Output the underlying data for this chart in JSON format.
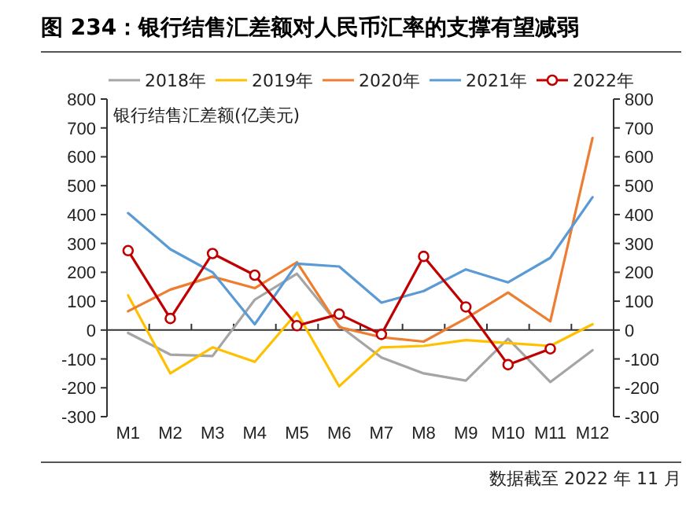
{
  "chart_data": {
    "type": "line",
    "title": "图 234：银行结售汇差额对人民币汇率的支撑有望减弱",
    "ylabel": "银行结售汇差额(亿美元)",
    "annotations": [
      "数据截至 2022 年 11 月"
    ],
    "categories": [
      "M1",
      "M2",
      "M3",
      "M4",
      "M5",
      "M6",
      "M7",
      "M8",
      "M9",
      "M10",
      "M11",
      "M12"
    ],
    "series": [
      {
        "name": "2018年",
        "color": "#a5a5a5",
        "values": [
          -10,
          -85,
          -90,
          105,
          195,
          15,
          -95,
          -150,
          -175,
          -30,
          -180,
          -70
        ]
      },
      {
        "name": "2019年",
        "color": "#ffc000",
        "values": [
          120,
          -150,
          -60,
          -110,
          60,
          -195,
          -60,
          -55,
          -35,
          -45,
          -55,
          20
        ]
      },
      {
        "name": "2020年",
        "color": "#ed7d31",
        "values": [
          65,
          140,
          185,
          145,
          235,
          10,
          -25,
          -40,
          40,
          130,
          30,
          665
        ]
      },
      {
        "name": "2021年",
        "color": "#5b9bd5",
        "values": [
          405,
          280,
          200,
          20,
          230,
          220,
          95,
          135,
          210,
          165,
          250,
          460
        ]
      },
      {
        "name": "2022年",
        "color": "#c00000",
        "marker": "circle",
        "values": [
          275,
          40,
          265,
          190,
          15,
          55,
          -15,
          255,
          80,
          -120,
          -65,
          null
        ]
      }
    ],
    "ylim": [
      -300,
      800
    ],
    "yticks": [
      -300,
      -200,
      -100,
      0,
      100,
      200,
      300,
      400,
      500,
      600,
      700,
      800
    ],
    "y2lim": [
      -300,
      800
    ],
    "y2ticks": [
      -300,
      -200,
      -100,
      0,
      100,
      200,
      300,
      400,
      500,
      600,
      700,
      800
    ],
    "legend": "top",
    "line_style": "solid"
  }
}
